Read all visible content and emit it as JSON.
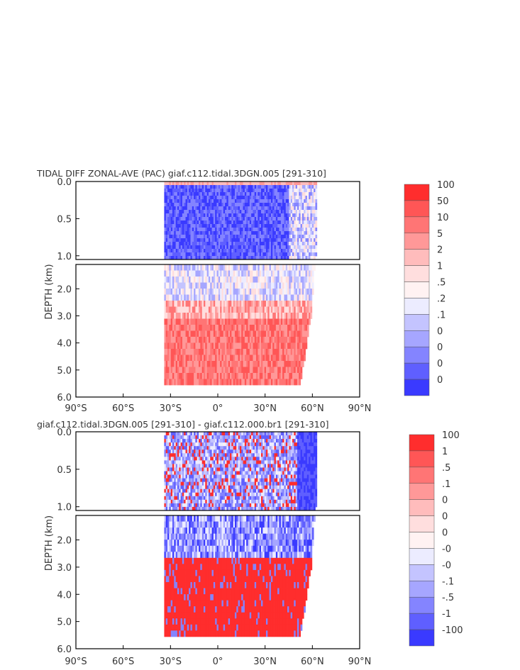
{
  "chart_data": [
    {
      "type": "heatmap",
      "title": "TIDAL DIFF ZONAL-AVE (PAC) giaf.c112.tidal.3DGN.005 [291-310]",
      "ylabel": "DEPTH (km)",
      "x_ticks": [
        "90°S",
        "60°S",
        "30°S",
        "0°",
        "30°N",
        "60°N",
        "90°N"
      ],
      "upper_y_ticks": [
        "0.0",
        "0.5",
        "1.0"
      ],
      "lower_y_ticks": [
        "2.0",
        "3.0",
        "4.0",
        "5.0",
        "6.0"
      ],
      "xlim": [
        -90,
        90
      ],
      "ylim": [
        0,
        6
      ],
      "legend_labels": [
        "100",
        "50",
        "10",
        "5",
        "2",
        "1",
        ".5",
        ".2",
        ".1",
        "0",
        "0",
        "0",
        "0"
      ],
      "legend_colors": [
        "#ff2d2d",
        "#ff5656",
        "#ff7575",
        "#ff9898",
        "#ffbcbc",
        "#ffdede",
        "#fff2f2",
        "#ececff",
        "#c4c4ff",
        "#a6a6ff",
        "#8484ff",
        "#5f5fff",
        "#3a3aff"
      ]
    },
    {
      "type": "heatmap",
      "title": "giaf.c112.tidal.3DGN.005 [291-310] - giaf.c112.000.br1 [291-310]",
      "ylabel": "DEPTH (km)",
      "x_ticks": [
        "90°S",
        "60°S",
        "30°S",
        "0°",
        "30°N",
        "60°N",
        "90°N"
      ],
      "upper_y_ticks": [
        "0.0",
        "0.5",
        "1.0"
      ],
      "lower_y_ticks": [
        "2.0",
        "3.0",
        "4.0",
        "5.0",
        "6.0"
      ],
      "xlim": [
        -90,
        90
      ],
      "ylim": [
        0,
        6
      ],
      "legend_labels": [
        "100",
        "1",
        ".5",
        ".1",
        "0",
        "0",
        "0",
        "-0",
        "-0",
        "-.1",
        "-.5",
        "-1",
        "-100"
      ],
      "legend_colors": [
        "#ff2d2d",
        "#ff5656",
        "#ff7575",
        "#ff9898",
        "#ffbcbc",
        "#ffdede",
        "#fff2f2",
        "#ececff",
        "#c4c4ff",
        "#a6a6ff",
        "#8484ff",
        "#5f5fff",
        "#3a3aff"
      ]
    }
  ]
}
